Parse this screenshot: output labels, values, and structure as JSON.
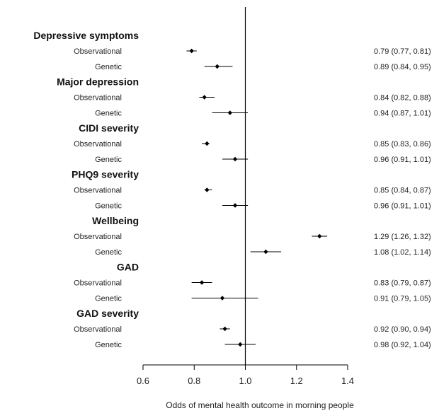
{
  "chart_data": {
    "type": "forest",
    "xlabel": "Odds of mental health outcome in morning people",
    "x_ticks": [
      0.6,
      0.8,
      1.0,
      1.2,
      1.4
    ],
    "x_tick_labels": [
      "0.6",
      "0.8",
      "1.0",
      "1.2",
      "1.4"
    ],
    "xlim": [
      0.6,
      1.4
    ],
    "reference_line": 1.0,
    "grid": false,
    "groups": [
      {
        "title": "Depressive symptoms",
        "rows": [
          {
            "label": "Observational",
            "or": 0.79,
            "lo": 0.77,
            "hi": 0.81,
            "text": "0.79 (0.77, 0.81)"
          },
          {
            "label": "Genetic",
            "or": 0.89,
            "lo": 0.84,
            "hi": 0.95,
            "text": "0.89 (0.84, 0.95)"
          }
        ]
      },
      {
        "title": "Major depression",
        "rows": [
          {
            "label": "Observational",
            "or": 0.84,
            "lo": 0.82,
            "hi": 0.88,
            "text": "0.84 (0.82, 0.88)"
          },
          {
            "label": "Genetic",
            "or": 0.94,
            "lo": 0.87,
            "hi": 1.01,
            "text": "0.94 (0.87, 1.01)"
          }
        ]
      },
      {
        "title": "CIDI severity",
        "rows": [
          {
            "label": "Observational",
            "or": 0.85,
            "lo": 0.83,
            "hi": 0.86,
            "text": "0.85 (0.83, 0.86)"
          },
          {
            "label": "Genetic",
            "or": 0.96,
            "lo": 0.91,
            "hi": 1.01,
            "text": "0.96 (0.91, 1.01)"
          }
        ]
      },
      {
        "title": "PHQ9 severity",
        "rows": [
          {
            "label": "Observational",
            "or": 0.85,
            "lo": 0.84,
            "hi": 0.87,
            "text": "0.85 (0.84, 0.87)"
          },
          {
            "label": "Genetic",
            "or": 0.96,
            "lo": 0.91,
            "hi": 1.01,
            "text": "0.96 (0.91, 1.01)"
          }
        ]
      },
      {
        "title": "Wellbeing",
        "rows": [
          {
            "label": "Observational",
            "or": 1.29,
            "lo": 1.26,
            "hi": 1.32,
            "text": "1.29 (1.26, 1.32)"
          },
          {
            "label": "Genetic",
            "or": 1.08,
            "lo": 1.02,
            "hi": 1.14,
            "text": "1.08 (1.02, 1.14)"
          }
        ]
      },
      {
        "title": "GAD",
        "rows": [
          {
            "label": "Observational",
            "or": 0.83,
            "lo": 0.79,
            "hi": 0.87,
            "text": "0.83 (0.79, 0.87)"
          },
          {
            "label": "Genetic",
            "or": 0.91,
            "lo": 0.79,
            "hi": 1.05,
            "text": "0.91 (0.79, 1.05)"
          }
        ]
      },
      {
        "title": "GAD severity",
        "rows": [
          {
            "label": "Observational",
            "or": 0.92,
            "lo": 0.9,
            "hi": 0.94,
            "text": "0.92 (0.90, 0.94)"
          },
          {
            "label": "Genetic",
            "or": 0.98,
            "lo": 0.92,
            "hi": 1.04,
            "text": "0.98 (0.92, 1.04)"
          }
        ]
      }
    ]
  }
}
